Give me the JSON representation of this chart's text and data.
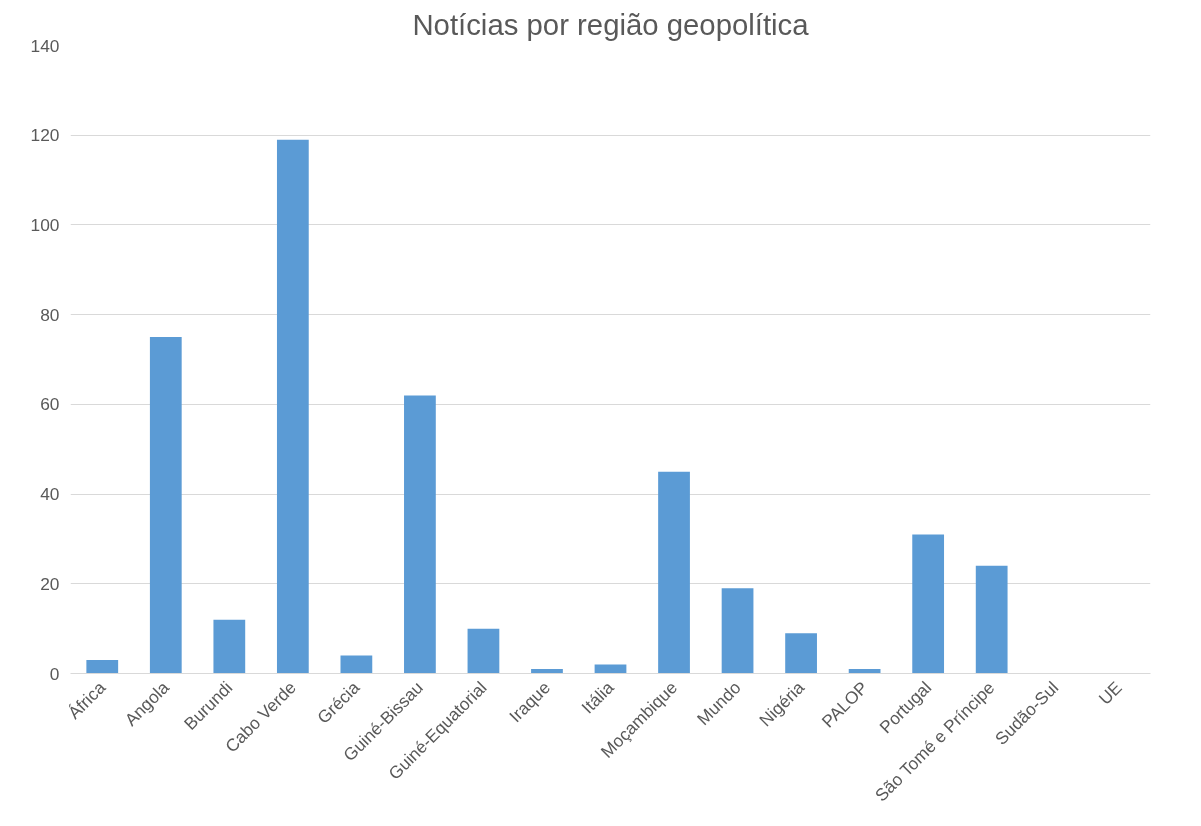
{
  "chart_data": {
    "type": "bar",
    "title": "Notícias por região geopolítica",
    "categories": [
      "África",
      "Angola",
      "Burundi",
      "Cabo Verde",
      "Grécia",
      "Guiné-Bissau",
      "Guiné-Equatorial",
      "Iraque",
      "Itália",
      "Moçambique",
      "Mundo",
      "Nigéria",
      "PALOP",
      "Portugal",
      "São Tomé e Príncipe",
      "Sudão-Sul",
      "UE"
    ],
    "values": [
      3,
      75,
      12,
      119,
      4,
      62,
      10,
      1,
      2,
      45,
      19,
      9,
      1,
      31,
      24,
      0,
      0
    ],
    "color": "#5b9bd5",
    "ylim": [
      0,
      140
    ],
    "yticks": [
      0,
      20,
      40,
      60,
      80,
      100,
      120,
      140
    ],
    "grid": "y"
  }
}
